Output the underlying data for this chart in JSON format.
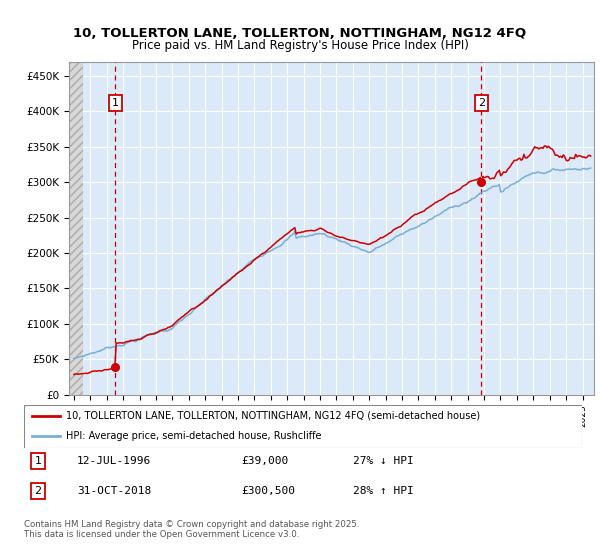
{
  "title_line1": "10, TOLLERTON LANE, TOLLERTON, NOTTINGHAM, NG12 4FQ",
  "title_line2": "Price paid vs. HM Land Registry's House Price Index (HPI)",
  "ylabel_ticks": [
    "£0",
    "£50K",
    "£100K",
    "£150K",
    "£200K",
    "£250K",
    "£300K",
    "£350K",
    "£400K",
    "£450K"
  ],
  "ytick_vals": [
    0,
    50000,
    100000,
    150000,
    200000,
    250000,
    300000,
    350000,
    400000,
    450000
  ],
  "ylim": [
    0,
    470000
  ],
  "xlim_start": 1993.7,
  "xlim_end": 2025.7,
  "background_color": "#dce9f8",
  "grid_color": "#ffffff",
  "sale1_x": 1996.53,
  "sale1_y": 39000,
  "sale2_x": 2018.83,
  "sale2_y": 300500,
  "legend_label_red": "10, TOLLERTON LANE, TOLLERTON, NOTTINGHAM, NG12 4FQ (semi-detached house)",
  "legend_label_blue": "HPI: Average price, semi-detached house, Rushcliffe",
  "note1_box": "1",
  "note1_date": "12-JUL-1996",
  "note1_price": "£39,000",
  "note1_hpi": "27% ↓ HPI",
  "note2_box": "2",
  "note2_date": "31-OCT-2018",
  "note2_price": "£300,500",
  "note2_hpi": "28% ↑ HPI",
  "footer": "Contains HM Land Registry data © Crown copyright and database right 2025.\nThis data is licensed under the Open Government Licence v3.0.",
  "line_color_red": "#cc0000",
  "line_color_blue": "#7aaed4"
}
